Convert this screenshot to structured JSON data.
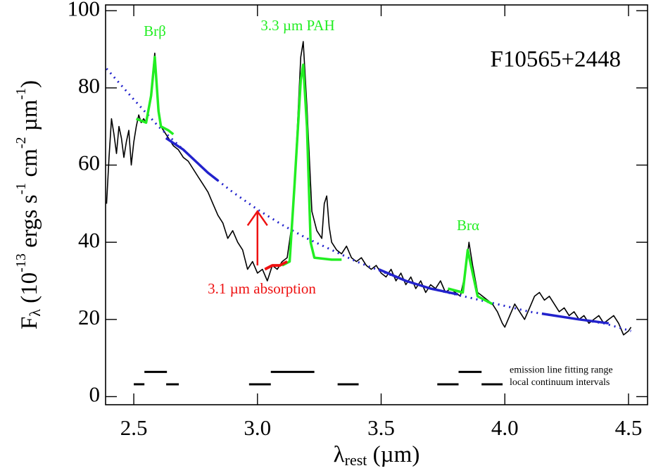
{
  "chart_data": {
    "type": "line",
    "ylabel": [
      {
        "text": "F"
      },
      {
        "text": "λ",
        "sub": true
      },
      {
        "text": " (10"
      },
      {
        "text": "-13",
        "sup": true
      },
      {
        "text": " ergs s"
      },
      {
        "text": "-1",
        "sup": true
      },
      {
        "text": " cm"
      },
      {
        "text": "-2",
        "sup": true
      },
      {
        "text": " µm"
      },
      {
        "text": "-1",
        "sup": true
      },
      {
        "text": ")"
      }
    ],
    "xlabel": [
      {
        "text": "λ"
      },
      {
        "text": "rest",
        "sub": true
      },
      {
        "text": " (µm)"
      }
    ],
    "xlim": [
      2.386,
      4.577
    ],
    "ylim": [
      -2.1,
      101.5
    ],
    "xticks": [
      2.5,
      {
        "value": 3,
        "label": "3.0"
      },
      3.5,
      {
        "value": 4,
        "label": "4.0"
      },
      4.5
    ],
    "yticks": [
      0,
      20,
      40,
      60,
      80,
      100
    ],
    "annotations": {
      "object": "F10565+2448",
      "brb": "Brβ",
      "pah": "3.3 µm PAH",
      "bra": "Brα",
      "absorption": "3.1 µm absorption"
    },
    "series": [
      {
        "color": "#000000",
        "width": 1.6,
        "dash": "none",
        "x": [
          2.39,
          2.4,
          2.41,
          2.42,
          2.43,
          2.44,
          2.45,
          2.46,
          2.47,
          2.48,
          2.49,
          2.5,
          2.51,
          2.52,
          2.53,
          2.54,
          2.55,
          2.56,
          2.57,
          2.58,
          2.585,
          2.59,
          2.6,
          2.61,
          2.62,
          2.64,
          2.66,
          2.68,
          2.7,
          2.72,
          2.74,
          2.76,
          2.78,
          2.8,
          2.82,
          2.84,
          2.86,
          2.88,
          2.9,
          2.92,
          2.94,
          2.96,
          2.98,
          3.0,
          3.02,
          3.04,
          3.06,
          3.08,
          3.1,
          3.12,
          3.14,
          3.16,
          3.175,
          3.185,
          3.2,
          3.22,
          3.24,
          3.26,
          3.27,
          3.28,
          3.29,
          3.3,
          3.32,
          3.34,
          3.36,
          3.38,
          3.4,
          3.42,
          3.44,
          3.46,
          3.48,
          3.5,
          3.52,
          3.54,
          3.56,
          3.58,
          3.6,
          3.62,
          3.64,
          3.66,
          3.68,
          3.7,
          3.72,
          3.74,
          3.76,
          3.78,
          3.8,
          3.82,
          3.84,
          3.855,
          3.87,
          3.89,
          3.91,
          3.93,
          3.95,
          3.97,
          3.99,
          4.0,
          4.02,
          4.04,
          4.06,
          4.08,
          4.1,
          4.12,
          4.14,
          4.16,
          4.18,
          4.2,
          4.22,
          4.24,
          4.26,
          4.28,
          4.3,
          4.32,
          4.34,
          4.36,
          4.38,
          4.4,
          4.42,
          4.44,
          4.46,
          4.48,
          4.5,
          4.51
        ],
        "values": [
          50,
          62,
          72,
          68,
          63,
          70,
          67,
          62,
          66,
          69,
          60,
          66,
          70,
          73,
          71,
          72,
          71,
          74,
          79,
          86,
          89,
          84,
          74,
          70,
          69,
          67,
          65,
          64,
          62,
          61,
          59,
          57,
          55,
          53,
          50,
          47,
          45,
          41,
          43,
          40,
          38,
          33,
          35,
          32,
          33,
          30,
          34,
          33,
          35,
          36,
          45,
          68,
          88,
          92,
          75,
          48,
          43,
          41,
          50,
          52,
          44,
          40,
          38,
          37,
          39,
          36,
          35,
          36,
          34,
          33,
          34,
          32,
          31,
          33,
          30,
          32,
          29,
          31,
          28,
          30,
          27,
          29,
          28,
          30,
          27,
          28,
          27,
          26,
          32,
          40,
          34,
          27,
          26,
          25,
          24,
          22,
          19,
          18,
          21,
          24,
          22,
          20,
          23,
          26,
          27,
          25,
          26,
          24,
          22,
          23,
          21,
          22,
          20,
          21,
          19,
          20,
          21,
          19,
          20,
          21,
          19,
          16,
          17,
          18
        ]
      },
      {
        "color": "#2222cc",
        "width": 3,
        "dash": "2 6",
        "x": [
          2.39,
          2.5,
          2.6,
          2.7,
          2.8,
          2.9,
          3.0,
          3.1,
          3.2,
          3.3,
          3.4,
          3.5,
          3.6,
          3.7,
          3.8,
          3.9,
          4.0,
          4.1,
          4.2,
          4.3,
          4.4,
          4.51
        ],
        "values": [
          85,
          77,
          70,
          64,
          58,
          53,
          48.5,
          44.5,
          41,
          38,
          35,
          32.5,
          30,
          28,
          26.5,
          25,
          23.5,
          22,
          21,
          20,
          19,
          17
        ]
      },
      {
        "color": "#2222cc",
        "width": 3.5,
        "dash": "none",
        "x": [
          2.63,
          2.7,
          2.8,
          2.84,
          3.2,
          3.49,
          3.6,
          3.7,
          3.81,
          4.0,
          4.15,
          4.3,
          4.42
        ],
        "values": [
          67,
          64,
          58,
          56,
          null,
          33,
          30,
          28,
          26.5,
          null,
          21.5,
          20,
          19
        ]
      },
      {
        "color": "#22ee22",
        "width": 3.5,
        "dash": "none",
        "x": [
          2.51,
          2.55,
          2.57,
          2.585,
          2.6,
          2.61,
          2.64,
          2.66,
          3.0,
          3.1,
          3.13,
          3.15,
          3.175,
          3.185,
          3.2,
          3.215,
          3.23,
          3.3,
          3.34,
          3.6,
          3.77,
          3.83,
          3.85,
          3.87,
          3.89,
          3.95
        ],
        "values": [
          72,
          71,
          78,
          88,
          74,
          70,
          69,
          68,
          null,
          34,
          35,
          55,
          82,
          86,
          70,
          40,
          36,
          35.5,
          35.5,
          null,
          28,
          27,
          38,
          32,
          26,
          24
        ]
      },
      {
        "color": "#ee1111",
        "width": 4,
        "dash": "none",
        "x": [
          3.03,
          3.06,
          3.09,
          3.12
        ],
        "values": [
          33,
          34,
          34,
          35
        ]
      }
    ],
    "arrow": {
      "x": 3.0,
      "from": 34,
      "to": 48,
      "color": "#ee1111"
    },
    "intervals": [
      {
        "name": "emission line fitting range",
        "y": 6.4,
        "ranges": [
          [
            2.543,
            2.634
          ],
          [
            3.054,
            3.23
          ],
          [
            3.813,
            3.906
          ]
        ]
      },
      {
        "name": "local continuum intervals",
        "y": 3.2,
        "ranges": [
          [
            2.5,
            2.543
          ],
          [
            2.631,
            2.682
          ],
          [
            2.966,
            3.054
          ],
          [
            3.324,
            3.409
          ],
          [
            3.727,
            3.813
          ],
          [
            3.906,
            3.991
          ]
        ]
      }
    ]
  }
}
